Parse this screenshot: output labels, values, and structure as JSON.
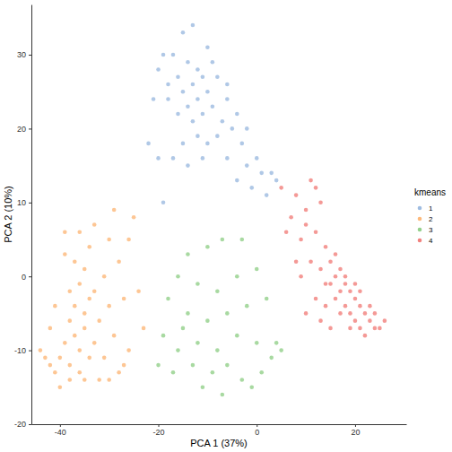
{
  "chart_data": {
    "type": "scatter",
    "x_label": "PCA 1 (37%)",
    "y_label": "PCA 2 (10%)",
    "legend_title": "kmeans",
    "legend": "right",
    "grid": false,
    "xlim": [
      -45.8,
      30.4
    ],
    "ylim": [
      -20,
      36.8
    ],
    "xticks": [
      -40,
      -20,
      0,
      20
    ],
    "yticks": [
      -20,
      -10,
      0,
      10,
      20,
      30
    ],
    "series": [
      {
        "name": "1",
        "color": "#86abd9",
        "x": [
          -15,
          -13,
          -10,
          -17,
          -14,
          -12,
          -9,
          -16,
          -13,
          -11,
          -8,
          -18,
          -15,
          -12,
          -10,
          -14,
          -9,
          -6,
          -11,
          -13,
          -7,
          -16,
          -20,
          -19,
          -21,
          -8,
          -5,
          -10,
          -3,
          -12,
          -6,
          -2,
          0,
          -4,
          1,
          3,
          2,
          -1,
          -15,
          -17,
          -11,
          -14,
          -20,
          -22,
          -19,
          -6,
          -4,
          -2,
          4,
          -18
        ],
        "values": [
          33,
          34,
          31,
          30,
          29,
          28,
          29,
          27,
          26,
          27,
          27,
          26,
          25,
          24,
          25,
          23,
          23,
          24,
          22,
          21,
          21,
          22,
          28,
          30,
          24,
          19,
          20,
          18,
          18,
          19,
          16,
          15,
          16,
          13,
          14,
          14,
          11,
          12,
          18,
          16,
          16,
          15,
          16,
          18,
          10,
          26,
          22,
          20,
          13,
          24
        ]
      },
      {
        "name": "2",
        "color": "#fca75a",
        "x": [
          -40,
          -38,
          -36,
          -42,
          -39,
          -37,
          -35,
          -41,
          -34,
          -36,
          -38,
          -43,
          -33,
          -35,
          -37,
          -34,
          -36,
          -38,
          -32,
          -33,
          -35,
          -37,
          -39,
          -34,
          -31,
          -30,
          -29,
          -31,
          -28,
          -30,
          -26,
          -27,
          -28,
          -30,
          -33,
          -36,
          -29,
          -26,
          -24,
          -23,
          -40,
          -44,
          -42,
          -38,
          -41,
          -32,
          -25,
          -39,
          -27,
          -35
        ],
        "values": [
          -11,
          -12,
          -10,
          -12,
          -9,
          -8,
          -7,
          -13,
          -11,
          -13,
          -14,
          -11,
          -9,
          -5,
          -4,
          -3,
          -1,
          -6,
          -6,
          -2,
          1,
          2,
          3,
          4,
          0,
          -4,
          -8,
          -11,
          -13,
          -14,
          -10,
          -3,
          2,
          5,
          7,
          6,
          9,
          5,
          -2,
          -7,
          -15,
          -10,
          -7,
          -2,
          -4,
          -14,
          8,
          6,
          -12,
          -14
        ]
      },
      {
        "name": "3",
        "color": "#79c46e",
        "x": [
          -14,
          -10,
          -7,
          -3,
          -16,
          -12,
          -8,
          -4,
          0,
          -18,
          -14,
          -10,
          -6,
          -2,
          2,
          -19,
          -16,
          -12,
          -8,
          -4,
          0,
          4,
          -20,
          -17,
          -13,
          -9,
          -6,
          -3,
          1,
          3,
          -11,
          -7,
          -1,
          -15,
          5
        ],
        "values": [
          3,
          4,
          5,
          5,
          0,
          -1,
          -2,
          0,
          1,
          -3,
          -5,
          -6,
          -5,
          -4,
          -3,
          -8,
          -10,
          -9,
          -10,
          -8,
          -9,
          -9,
          -12,
          -13,
          -12,
          -13,
          -12,
          -14,
          -13,
          -11,
          -15,
          -16,
          -15,
          -7,
          -10
        ]
      },
      {
        "name": "4",
        "color": "#ee625e",
        "x": [
          5,
          8,
          11,
          7,
          10,
          13,
          6,
          9,
          12,
          14,
          8,
          11,
          13,
          15,
          16,
          14,
          17,
          18,
          19,
          16,
          20,
          21,
          18,
          22,
          23,
          20,
          24,
          25,
          22,
          19,
          17,
          15,
          21,
          23,
          18,
          12,
          10,
          13,
          15,
          24,
          26,
          20,
          10,
          16,
          12,
          9,
          19,
          21,
          14,
          17
        ],
        "values": [
          12,
          11,
          13,
          8,
          9,
          10,
          6,
          5,
          6,
          4,
          2,
          2,
          1,
          2,
          0,
          -1,
          1,
          -1,
          -2,
          -3,
          -3,
          -4,
          -4,
          -5,
          -6,
          -6,
          -7,
          -7,
          -8,
          -5,
          -2,
          -1,
          -2,
          -4,
          0,
          -3,
          -5,
          -6,
          -7,
          -5,
          -6,
          -1,
          7,
          3,
          12,
          0,
          -7,
          -7,
          -4,
          -5
        ]
      }
    ]
  }
}
